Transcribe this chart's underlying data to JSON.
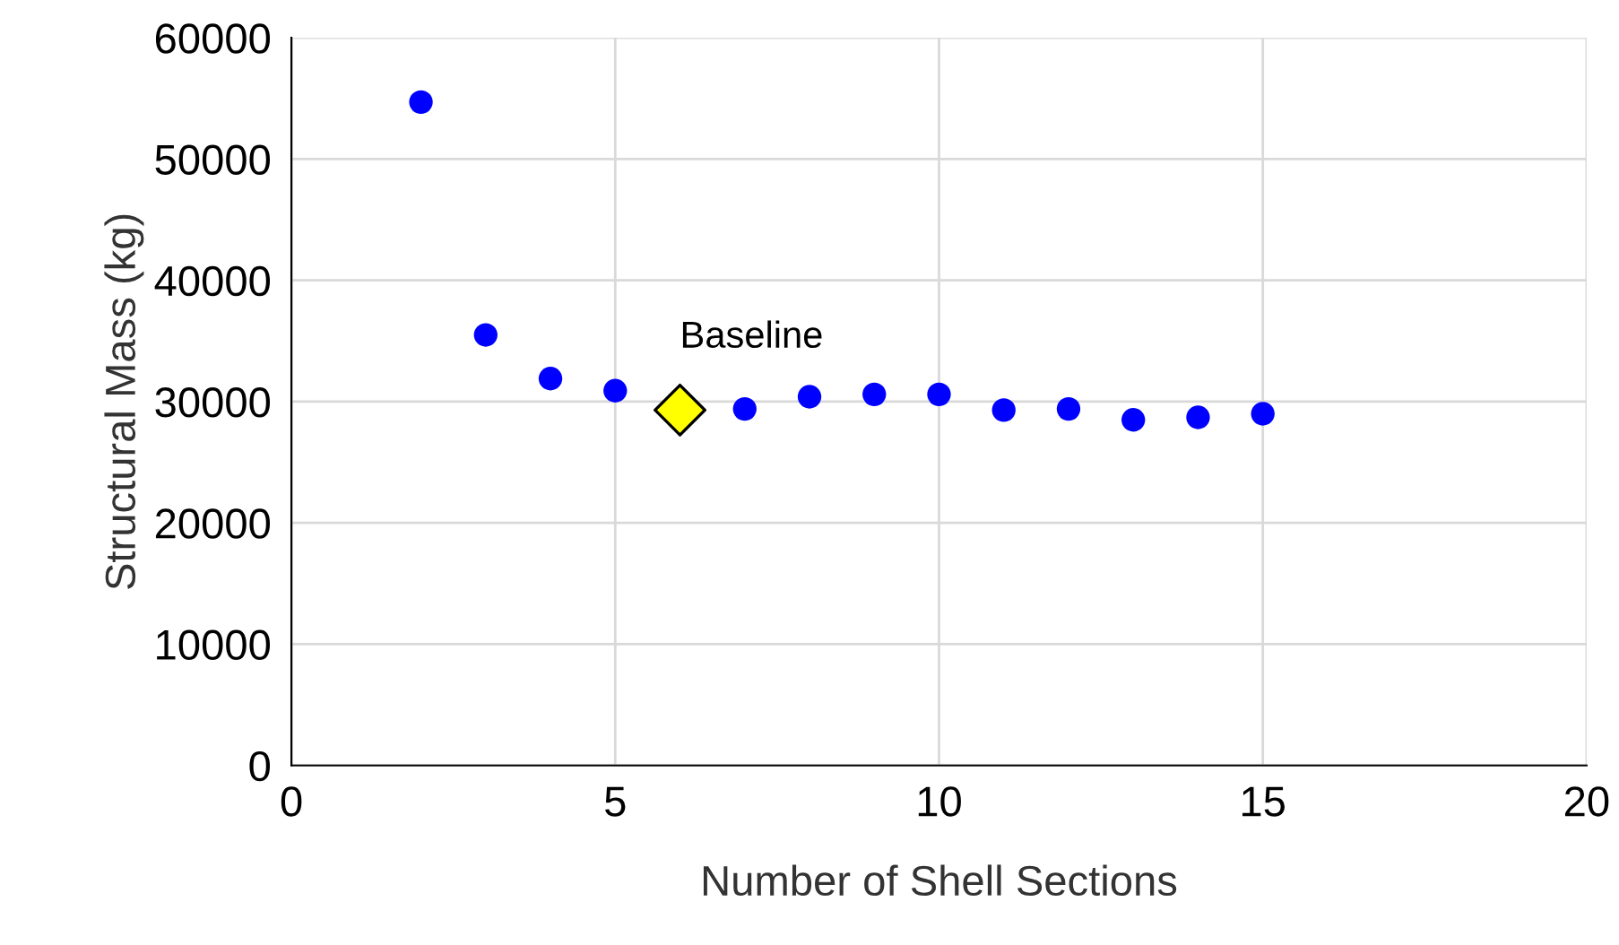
{
  "chart_data": {
    "type": "scatter",
    "xlabel": "Number of Shell Sections",
    "ylabel": "Structural Mass (kg)",
    "xlim": [
      0,
      20
    ],
    "xticks": [
      0,
      5,
      10,
      15,
      20
    ],
    "ylim": [
      0,
      60000
    ],
    "yticks": [
      0,
      10000,
      20000,
      30000,
      40000,
      50000,
      60000
    ],
    "grid": true,
    "series": [
      {
        "color": "#0000ff",
        "marker": "circle",
        "x": [
          2,
          3,
          4,
          5,
          7,
          8,
          9,
          10,
          11,
          12,
          13,
          14,
          15
        ],
        "values": [
          54700,
          35500,
          31900,
          30900,
          29400,
          30400,
          30600,
          30600,
          29300,
          29400,
          28500,
          28700,
          29000
        ]
      },
      {
        "color": "#ffff00",
        "marker": "diamond",
        "x": [
          6
        ],
        "values": [
          29300
        ]
      }
    ],
    "annotations": [
      {
        "text": "Baseline",
        "x": 6,
        "y": 29300
      }
    ]
  }
}
